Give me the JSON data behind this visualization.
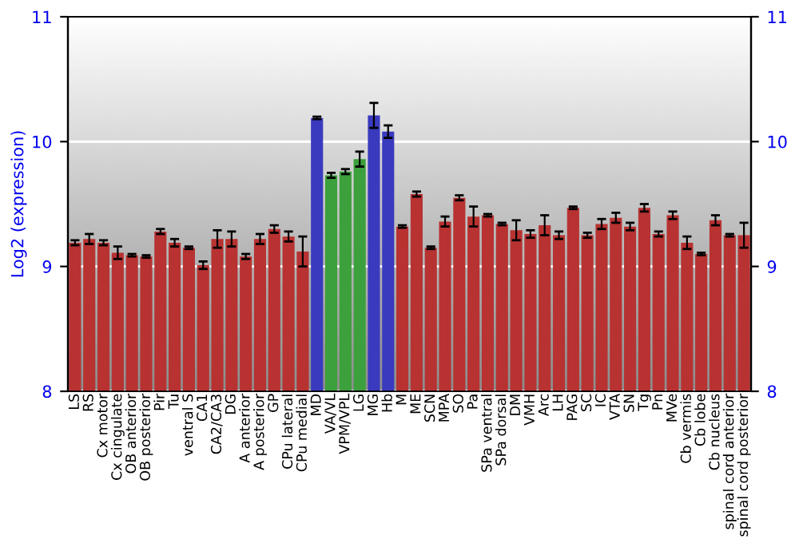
{
  "chart_data": {
    "type": "bar",
    "ylabel": "Log2 (expression)",
    "categories": [
      "LS",
      "RS",
      "Cx motor",
      "Cx cingulate",
      "OB anterior",
      "OB posterior",
      "Pir",
      "Tu",
      "ventral S",
      "CA1",
      "CA2/CA3",
      "DG",
      "A anterior",
      "A posterior",
      "GP",
      "CPu lateral",
      "CPu medial",
      "MD",
      "VA/VL",
      "VPM/VPL",
      "LG",
      "MG",
      "Hb",
      "M",
      "ME",
      "SCN",
      "MPA",
      "SO",
      "Pa",
      "SPa ventral",
      "SPa dorsal",
      "DM",
      "VMH",
      "Arc",
      "LH",
      "PAG",
      "SC",
      "IC",
      "VTA",
      "SN",
      "Tg",
      "Pn",
      "MVe",
      "Cb vermis",
      "Cb lobe",
      "Cb nucleus",
      "spinal cord anterior",
      "spinal cord posterior"
    ],
    "values": [
      9.19,
      9.22,
      9.19,
      9.11,
      9.09,
      9.08,
      9.28,
      9.19,
      9.15,
      9.01,
      9.22,
      9.22,
      9.08,
      9.22,
      9.3,
      9.24,
      9.12,
      10.19,
      9.73,
      9.76,
      9.86,
      10.21,
      10.08,
      9.32,
      9.58,
      9.15,
      9.36,
      9.55,
      9.4,
      9.41,
      9.34,
      9.29,
      9.26,
      9.33,
      9.25,
      9.47,
      9.25,
      9.34,
      9.39,
      9.32,
      9.47,
      9.26,
      9.41,
      9.19,
      9.1,
      9.37,
      9.25,
      9.25
    ],
    "errors": [
      0.02,
      0.04,
      0.02,
      0.05,
      0.01,
      0.01,
      0.02,
      0.03,
      0.01,
      0.03,
      0.07,
      0.06,
      0.02,
      0.04,
      0.03,
      0.04,
      0.12,
      0.01,
      0.02,
      0.02,
      0.06,
      0.1,
      0.05,
      0.01,
      0.02,
      0.01,
      0.04,
      0.02,
      0.08,
      0.01,
      0.01,
      0.08,
      0.03,
      0.08,
      0.03,
      0.01,
      0.02,
      0.04,
      0.04,
      0.03,
      0.03,
      0.02,
      0.03,
      0.05,
      0.01,
      0.04,
      0.01,
      0.1
    ],
    "colors": [
      "#b83232",
      "#b83232",
      "#b83232",
      "#b83232",
      "#b83232",
      "#b83232",
      "#b83232",
      "#b83232",
      "#b83232",
      "#b83232",
      "#b83232",
      "#b83232",
      "#b83232",
      "#b83232",
      "#b83232",
      "#b83232",
      "#b83232",
      "#3a3abf",
      "#3ca03c",
      "#3ca03c",
      "#3ca03c",
      "#3a3abf",
      "#3a3abf",
      "#b83232",
      "#b83232",
      "#b83232",
      "#b83232",
      "#b83232",
      "#b83232",
      "#b83232",
      "#b83232",
      "#b83232",
      "#b83232",
      "#b83232",
      "#b83232",
      "#b83232",
      "#b83232",
      "#b83232",
      "#b83232",
      "#b83232",
      "#b83232",
      "#b83232",
      "#b83232",
      "#b83232",
      "#b83232",
      "#b83232",
      "#b83232",
      "#b83232"
    ],
    "ylim": [
      8,
      11
    ],
    "yticks": [
      8,
      9,
      10,
      11
    ],
    "y2lim": [
      8,
      11
    ],
    "y2ticks": [
      8,
      9,
      10,
      11
    ],
    "grid": "y"
  }
}
